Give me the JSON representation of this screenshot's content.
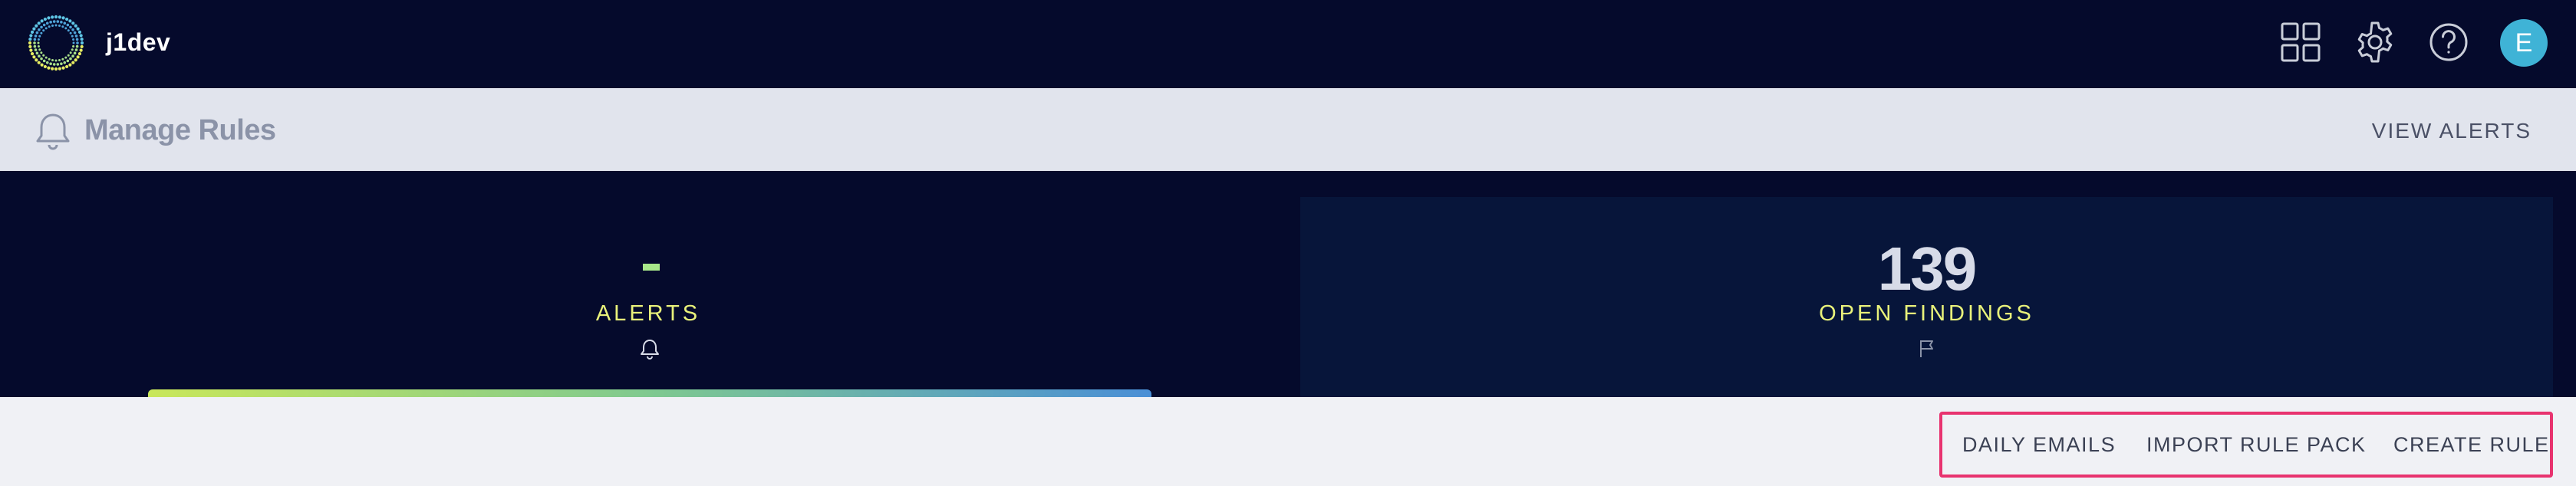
{
  "app": {
    "name": "j1dev",
    "avatar_initial": "E"
  },
  "topbar": {
    "icons": [
      "apps-grid-icon",
      "gear-icon",
      "help-icon"
    ],
    "brand_color": "#050a2c",
    "avatar_color": "#3fb3d6"
  },
  "header": {
    "title": "Manage Rules",
    "view_alerts_label": "VIEW ALERTS"
  },
  "stats": {
    "alerts": {
      "value": "-",
      "label": "ALERTS"
    },
    "findings": {
      "value": "139",
      "label": "OPEN FINDINGS"
    },
    "label_color": "#e9f27a"
  },
  "actions": {
    "daily_emails": "DAILY EMAILS",
    "import_rule_pack": "IMPORT RULE PACK",
    "create_rule": "CREATE RULE",
    "highlight_color": "#e8336f"
  }
}
